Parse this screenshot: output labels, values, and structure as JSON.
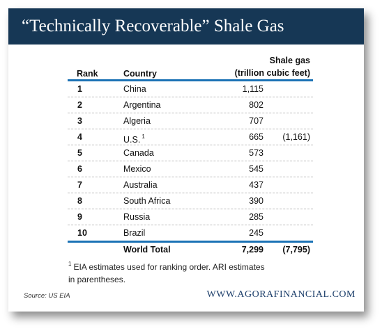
{
  "title": "“Technically Recoverable” Shale Gas",
  "columns": {
    "rank": "Rank",
    "country": "Country",
    "gas_line1": "Shale gas",
    "gas_line2": "(trillion cubic feet)"
  },
  "rows": [
    {
      "rank": "1",
      "country": "China",
      "sup": "",
      "value": "1,115",
      "paren": ""
    },
    {
      "rank": "2",
      "country": "Argentina",
      "sup": "",
      "value": "802",
      "paren": ""
    },
    {
      "rank": "3",
      "country": "Algeria",
      "sup": "",
      "value": "707",
      "paren": ""
    },
    {
      "rank": "4",
      "country": "U.S.",
      "sup": "1",
      "value": "665",
      "paren": "(1,161)"
    },
    {
      "rank": "5",
      "country": "Canada",
      "sup": "",
      "value": "573",
      "paren": ""
    },
    {
      "rank": "6",
      "country": "Mexico",
      "sup": "",
      "value": "545",
      "paren": ""
    },
    {
      "rank": "7",
      "country": "Australia",
      "sup": "",
      "value": "437",
      "paren": ""
    },
    {
      "rank": "8",
      "country": "South Africa",
      "sup": "",
      "value": "390",
      "paren": ""
    },
    {
      "rank": "9",
      "country": "Russia",
      "sup": "",
      "value": "285",
      "paren": ""
    },
    {
      "rank": "10",
      "country": "Brazil",
      "sup": "",
      "value": "245",
      "paren": ""
    }
  ],
  "total": {
    "label": "World Total",
    "value": "7,299",
    "paren": "(7,795)"
  },
  "footnote": {
    "marker": "1",
    "line1": "EIA estimates used for ranking order. ARI estimates",
    "line2": "in parentheses."
  },
  "source": "Source: US EIA",
  "website": "WWW.AGORAFINANCIAL.COM",
  "colors": {
    "banner": "#163755",
    "rule": "#1b72b5",
    "website": "#1d3f6b"
  }
}
